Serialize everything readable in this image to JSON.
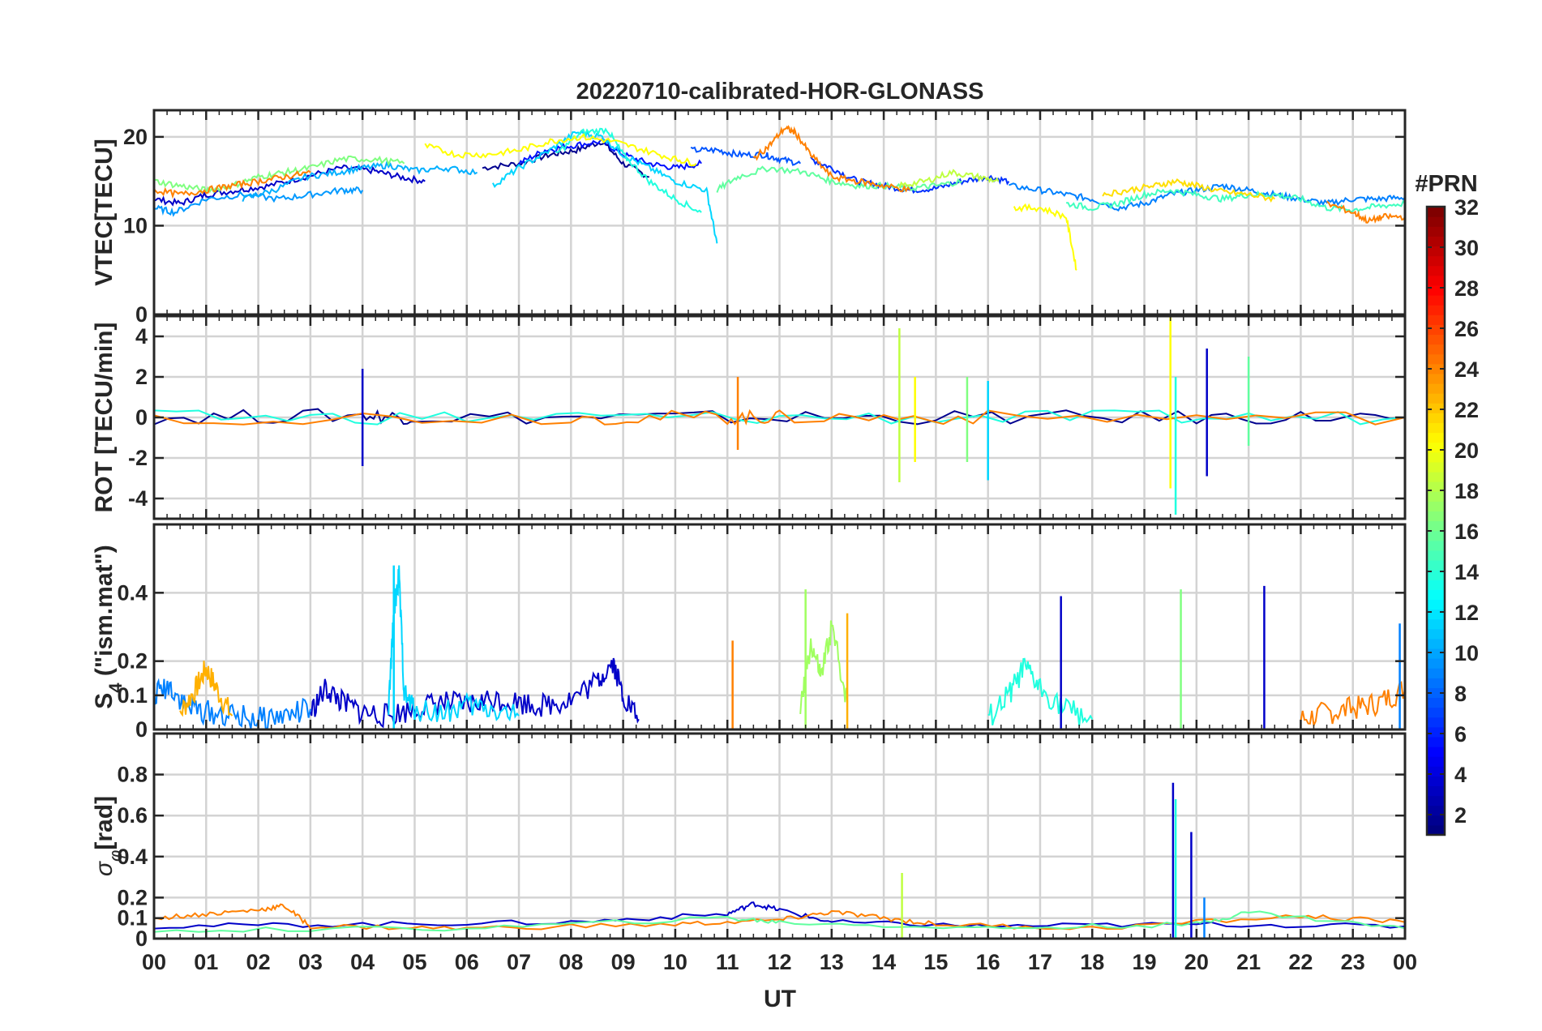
{
  "figure": {
    "title": "20220710-calibrated-HOR-GLONASS",
    "xlabel": "UT",
    "x_ticks": [
      "00",
      "01",
      "02",
      "03",
      "04",
      "05",
      "06",
      "07",
      "08",
      "09",
      "10",
      "11",
      "12",
      "13",
      "14",
      "15",
      "16",
      "17",
      "18",
      "19",
      "20",
      "21",
      "22",
      "23",
      "00"
    ]
  },
  "colorbar": {
    "label": "#PRN",
    "colormap": "jet",
    "range": [
      1,
      32
    ],
    "ticks": [
      "2",
      "4",
      "6",
      "8",
      "10",
      "12",
      "14",
      "16",
      "18",
      "20",
      "22",
      "24",
      "26",
      "28",
      "30",
      "32"
    ]
  },
  "chart_data": [
    {
      "type": "line",
      "name": "vtec",
      "ylabel": "VTEC[TECU]",
      "xlim": [
        0,
        24
      ],
      "ylim": [
        0,
        23
      ],
      "yticks": [
        "0",
        "10",
        "20"
      ],
      "grid": true,
      "series": [
        {
          "prn": 1,
          "color": "#00008f",
          "x": [
            6.3,
            7.0,
            7.6,
            8.1,
            8.6,
            9.0,
            9.5
          ],
          "y": [
            16.5,
            17.0,
            18.0,
            18.5,
            19.5,
            17.0,
            15.5
          ]
        },
        {
          "prn": 2,
          "color": "#0000c8",
          "x": [
            0.0,
            0.5,
            1.0,
            1.6,
            2.2,
            2.9,
            3.6,
            4.2,
            4.7,
            5.2
          ],
          "y": [
            13.0,
            12.5,
            13.5,
            14.0,
            14.5,
            15.5,
            16.5,
            16.2,
            15.5,
            15.0
          ]
        },
        {
          "prn": 3,
          "color": "#0010ff",
          "x": [
            7.0,
            7.5,
            8.0,
            8.6,
            9.0,
            9.5,
            10.0,
            10.5
          ],
          "y": [
            17.0,
            18.5,
            19.0,
            19.5,
            18.0,
            17.0,
            16.5,
            17.0
          ]
        },
        {
          "prn": 4,
          "color": "#0030ff",
          "x": [
            12.6,
            13.0,
            13.5,
            14.0,
            14.5,
            15.0,
            15.5,
            16.0,
            16.4
          ],
          "y": [
            17.5,
            16.5,
            15.0,
            14.5,
            14.0,
            14.2,
            15.0,
            15.5,
            15.0
          ]
        },
        {
          "prn": 5,
          "color": "#0055ff",
          "x": [
            10.3,
            10.8,
            11.2,
            11.7,
            12.0,
            12.4
          ],
          "y": [
            18.5,
            18.5,
            18.0,
            18.0,
            17.5,
            17.0
          ]
        },
        {
          "prn": 6,
          "color": "#0080ff",
          "x": [
            16.4,
            17.0,
            17.5,
            18.0,
            18.5,
            19.0,
            19.5,
            20.0,
            20.5,
            21.0,
            21.5,
            22.0,
            22.5,
            23.0,
            23.5,
            24.0
          ],
          "y": [
            14.5,
            14.0,
            13.5,
            13.0,
            12.0,
            12.5,
            13.5,
            14.0,
            14.5,
            14.0,
            13.5,
            13.0,
            12.5,
            13.0,
            13.0,
            13.2
          ]
        },
        {
          "prn": 7,
          "color": "#0099ff",
          "x": [
            0.0,
            0.4,
            1.0,
            1.7,
            2.4,
            3.0,
            3.6,
            4.0
          ],
          "y": [
            12.0,
            11.5,
            13.0,
            13.5,
            13.0,
            13.5,
            14.0,
            14.0
          ]
        },
        {
          "prn": 8,
          "color": "#00b0ff",
          "x": [
            1.7,
            2.3,
            2.9,
            3.5,
            4.0,
            4.5,
            5.0,
            5.6,
            6.2
          ],
          "y": [
            13.0,
            14.0,
            15.5,
            16.0,
            16.5,
            16.8,
            16.2,
            16.5,
            16.0
          ]
        },
        {
          "prn": 10,
          "color": "#00d6ff",
          "x": [
            6.5,
            7.0,
            7.6,
            8.1,
            8.6,
            9.0,
            9.5,
            10.0,
            10.6,
            10.8
          ],
          "y": [
            14.5,
            16.5,
            18.5,
            20.5,
            20.0,
            18.0,
            16.5,
            15.0,
            14.0,
            8.0
          ]
        },
        {
          "prn": 12,
          "color": "#20ffdf",
          "x": [
            7.7,
            8.2,
            8.7,
            9.0,
            9.5,
            10.0,
            10.5
          ],
          "y": [
            18.0,
            20.5,
            20.8,
            18.0,
            15.0,
            13.0,
            11.5
          ]
        },
        {
          "prn": 13,
          "color": "#40ffbf",
          "x": [
            17.5,
            18.0,
            18.5,
            19.0,
            19.5,
            20.0,
            20.5,
            21.0,
            21.5,
            22.0,
            22.5,
            23.0,
            23.5,
            24.0
          ],
          "y": [
            12.5,
            12.0,
            12.5,
            13.5,
            14.0,
            13.5,
            13.0,
            13.5,
            13.5,
            13.0,
            12.0,
            11.8,
            12.2,
            12.5
          ]
        },
        {
          "prn": 14,
          "color": "#60ff9f",
          "x": [
            10.8,
            11.2,
            11.8,
            12.5,
            13.0,
            13.5,
            14.0,
            14.5,
            15.0,
            15.5
          ],
          "y": [
            14.0,
            15.5,
            16.5,
            16.0,
            15.0,
            14.5,
            14.5,
            14.2,
            14.5,
            15.0
          ]
        },
        {
          "prn": 15,
          "color": "#80ff80",
          "x": [
            0.0,
            0.5,
            1.0,
            1.5,
            2.0,
            2.5,
            3.0,
            3.6,
            4.2,
            4.8
          ],
          "y": [
            15.0,
            14.5,
            14.0,
            14.5,
            15.5,
            16.0,
            16.5,
            17.5,
            17.5,
            17.0
          ]
        },
        {
          "prn": 17,
          "color": "#bfff40",
          "x": [
            14.3,
            14.8,
            15.3,
            15.8,
            16.2
          ],
          "y": [
            14.5,
            15.0,
            16.0,
            15.5,
            15.0
          ]
        },
        {
          "prn": 19,
          "color": "#ffff00",
          "x": [
            5.2,
            5.8,
            6.4,
            7.0,
            7.6,
            8.2,
            8.8,
            9.4,
            10.0,
            10.4
          ],
          "y": [
            19.0,
            18.0,
            18.0,
            18.5,
            19.5,
            20.0,
            19.5,
            18.5,
            17.5,
            17.0
          ]
        },
        {
          "prn": 19,
          "color": "#ffff00",
          "x": [
            16.5,
            17.0,
            17.5,
            17.7
          ],
          "y": [
            12.0,
            12.0,
            11.0,
            5.0
          ]
        },
        {
          "prn": 21,
          "color": "#ffdf00",
          "x": [
            18.2,
            18.7,
            19.2,
            19.6,
            20.0,
            20.5,
            21.0,
            21.5
          ],
          "y": [
            13.5,
            14.0,
            14.5,
            15.0,
            14.5,
            13.8,
            13.5,
            13.0
          ]
        },
        {
          "prn": 24,
          "color": "#ff8000",
          "x": [
            0.0,
            0.5,
            1.0,
            1.5,
            2.0,
            2.5,
            3.0
          ],
          "y": [
            14.0,
            13.5,
            14.0,
            14.5,
            15.0,
            15.5,
            16.0
          ]
        },
        {
          "prn": 24,
          "color": "#ff8000",
          "x": [
            11.5,
            11.8,
            12.1,
            12.3,
            12.6,
            13.0,
            13.5,
            14.0,
            14.5
          ],
          "y": [
            17.5,
            19.0,
            21.0,
            20.5,
            18.0,
            15.5,
            15.0,
            14.5,
            14.0
          ]
        },
        {
          "prn": 24,
          "color": "#ff8000",
          "x": [
            22.5,
            23.0,
            23.3,
            23.6,
            24.0
          ],
          "y": [
            12.5,
            11.5,
            10.5,
            11.0,
            11.0
          ]
        }
      ]
    },
    {
      "type": "line",
      "name": "rot",
      "ylabel": "ROT [TECU/min]",
      "xlim": [
        0,
        24
      ],
      "ylim": [
        -5,
        5
      ],
      "yticks": [
        "-4",
        "-2",
        "0",
        "2",
        "4"
      ],
      "grid": true,
      "series": [
        {
          "prn": 1,
          "color": "#00008f",
          "x": [
            0,
            4,
            5,
            10,
            15,
            20,
            24
          ],
          "y": [
            0,
            0.1,
            0,
            0,
            0,
            0,
            0
          ]
        },
        {
          "prn": 12,
          "color": "#20ffdf",
          "x": [
            0,
            6,
            12,
            18,
            24
          ],
          "y": [
            0,
            0,
            0,
            0,
            0
          ]
        },
        {
          "prn": 24,
          "color": "#ff8000",
          "x": [
            0,
            8,
            11,
            12,
            16,
            24
          ],
          "y": [
            0,
            0,
            0,
            0,
            0,
            0
          ]
        }
      ],
      "spikes": [
        {
          "x": 4.0,
          "y": [
            -2.4,
            2.4
          ],
          "color": "#0000c8"
        },
        {
          "x": 14.3,
          "y": [
            -3.2,
            4.4
          ],
          "color": "#bfff40"
        },
        {
          "x": 14.6,
          "y": [
            -2.2,
            2.0
          ],
          "color": "#ffff00"
        },
        {
          "x": 15.6,
          "y": [
            -2.2,
            2.0
          ],
          "color": "#80ff80"
        },
        {
          "x": 16.0,
          "y": [
            -3.1,
            1.8
          ],
          "color": "#00d6ff"
        },
        {
          "x": 19.5,
          "y": [
            -3.5,
            5.0
          ],
          "color": "#ffff00"
        },
        {
          "x": 19.6,
          "y": [
            -4.8,
            2.0
          ],
          "color": "#20ffdf"
        },
        {
          "x": 20.2,
          "y": [
            -2.9,
            3.4
          ],
          "color": "#0000c8"
        },
        {
          "x": 21.0,
          "y": [
            -1.4,
            3.0
          ],
          "color": "#60ff9f"
        },
        {
          "x": 11.2,
          "y": [
            -1.6,
            2.0
          ],
          "color": "#ff8000"
        }
      ]
    },
    {
      "type": "line",
      "name": "s4",
      "ylabel": "S4 (\"ism.mat\")",
      "ylabel_main": "S",
      "ylabel_sub": "4",
      "ylabel_rest": " (\"ism.mat\")",
      "xlim": [
        0,
        24
      ],
      "ylim": [
        0,
        0.6
      ],
      "yticks": [
        "0",
        "0.1",
        "0.2",
        "0.4"
      ],
      "grid": true,
      "series": [
        {
          "prn": 2,
          "color": "#0000c8",
          "x": [
            3.0,
            3.3,
            3.6,
            4.0,
            4.5,
            5.0,
            5.5,
            6.0,
            6.5,
            7.0,
            7.5,
            8.0,
            8.5,
            8.8,
            9.0,
            9.3
          ],
          "y": [
            0.05,
            0.12,
            0.08,
            0.05,
            0.04,
            0.06,
            0.08,
            0.07,
            0.09,
            0.08,
            0.07,
            0.09,
            0.14,
            0.2,
            0.1,
            0.03
          ]
        },
        {
          "prn": 6,
          "color": "#0080ff",
          "x": [
            0.0,
            0.3,
            0.6,
            1.0,
            1.5,
            2.0,
            2.5,
            3.0
          ],
          "y": [
            0.1,
            0.13,
            0.07,
            0.05,
            0.04,
            0.03,
            0.04,
            0.06
          ]
        },
        {
          "prn": 10,
          "color": "#00d6ff",
          "x": [
            4.5,
            4.6,
            4.7,
            4.8,
            5.0,
            5.5,
            6.0,
            6.5,
            7.0
          ],
          "y": [
            0.05,
            0.35,
            0.45,
            0.1,
            0.06,
            0.05,
            0.07,
            0.06,
            0.04
          ]
        },
        {
          "prn": 12,
          "color": "#20ffdf",
          "x": [
            16.0,
            16.4,
            16.7,
            17.0,
            17.5,
            18.0
          ],
          "y": [
            0.03,
            0.1,
            0.18,
            0.12,
            0.06,
            0.03
          ]
        },
        {
          "prn": 16,
          "color": "#a0ff60",
          "x": [
            12.4,
            12.6,
            12.8,
            13.0,
            13.3
          ],
          "y": [
            0.05,
            0.25,
            0.15,
            0.3,
            0.08
          ]
        },
        {
          "prn": 22,
          "color": "#ffb000",
          "x": [
            0.5,
            0.8,
            1.0,
            1.2,
            1.5
          ],
          "y": [
            0.05,
            0.12,
            0.18,
            0.12,
            0.04
          ]
        },
        {
          "prn": 24,
          "color": "#ff8000",
          "x": [
            22.0,
            22.5,
            23.0,
            23.5,
            24.0
          ],
          "y": [
            0.03,
            0.05,
            0.06,
            0.08,
            0.12
          ]
        }
      ],
      "spikes": [
        {
          "x": 4.6,
          "y": [
            0,
            0.48
          ],
          "color": "#00d6ff"
        },
        {
          "x": 12.5,
          "y": [
            0,
            0.41
          ],
          "color": "#a0ff60"
        },
        {
          "x": 13.3,
          "y": [
            0,
            0.34
          ],
          "color": "#ffb000"
        },
        {
          "x": 17.4,
          "y": [
            0,
            0.39
          ],
          "color": "#0000c8"
        },
        {
          "x": 19.7,
          "y": [
            0,
            0.41
          ],
          "color": "#80ff80"
        },
        {
          "x": 21.3,
          "y": [
            0,
            0.42
          ],
          "color": "#0000c8"
        },
        {
          "x": 11.1,
          "y": [
            0,
            0.26
          ],
          "color": "#ff8000"
        },
        {
          "x": 23.9,
          "y": [
            0,
            0.31
          ],
          "color": "#0080ff"
        }
      ]
    },
    {
      "type": "line",
      "name": "sigma_phi",
      "ylabel": "σφ[rad]",
      "ylabel_main": "σ",
      "ylabel_sub": "φ",
      "ylabel_rest": "[rad]",
      "xlim": [
        0,
        24
      ],
      "ylim": [
        0,
        1.0
      ],
      "yticks": [
        "0",
        "0.1",
        "0.2",
        "0.4",
        "0.6",
        "0.8"
      ],
      "grid": true,
      "series": [
        {
          "prn": 2,
          "color": "#0000c8",
          "x": [
            0,
            4,
            8,
            11,
            11.5,
            12,
            13,
            16,
            20,
            24
          ],
          "y": [
            0.06,
            0.07,
            0.08,
            0.12,
            0.17,
            0.14,
            0.08,
            0.06,
            0.07,
            0.06
          ]
        },
        {
          "prn": 24,
          "color": "#ff8000",
          "x": [
            0,
            1,
            2,
            2.5,
            3,
            6,
            10,
            12,
            13,
            14,
            15,
            18,
            22,
            24
          ],
          "y": [
            0.1,
            0.12,
            0.14,
            0.16,
            0.06,
            0.05,
            0.07,
            0.09,
            0.13,
            0.1,
            0.07,
            0.05,
            0.11,
            0.08
          ]
        },
        {
          "prn": 14,
          "color": "#60ff9f",
          "x": [
            0,
            6,
            11,
            12,
            16,
            20,
            21,
            24
          ],
          "y": [
            0.04,
            0.05,
            0.1,
            0.08,
            0.05,
            0.07,
            0.13,
            0.05
          ]
        }
      ],
      "spikes": [
        {
          "x": 19.55,
          "y": [
            0,
            0.76
          ],
          "color": "#0000c8"
        },
        {
          "x": 19.6,
          "y": [
            0,
            0.68
          ],
          "color": "#20ffdf"
        },
        {
          "x": 19.9,
          "y": [
            0,
            0.52
          ],
          "color": "#0000c8"
        },
        {
          "x": 14.35,
          "y": [
            0,
            0.32
          ],
          "color": "#bfff40"
        },
        {
          "x": 20.15,
          "y": [
            0,
            0.2
          ],
          "color": "#0080ff"
        }
      ]
    }
  ]
}
